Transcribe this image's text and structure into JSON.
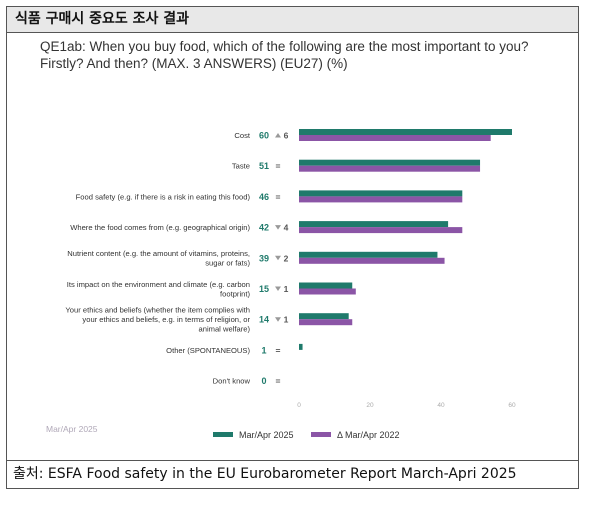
{
  "header": {
    "title": "식품 구매시 중요도 조사 결과"
  },
  "question": {
    "line1": "QE1ab: When you buy food, which of the following are the most important to you?",
    "line2": "Firstly? And then? (MAX. 3 ANSWERS) (EU27) (%)"
  },
  "chart_data": {
    "type": "bar",
    "orientation": "horizontal",
    "categories": [
      [
        "Cost"
      ],
      [
        "Taste"
      ],
      [
        "Food safety (e.g. if there is a risk in eating this food)"
      ],
      [
        "Where the food comes from (e.g. geographical origin)"
      ],
      [
        "Nutrient content (e.g. the amount of vitamins, proteins,",
        "sugar or fats)"
      ],
      [
        "Its impact on the environment and climate (e.g. carbon",
        "footprint)"
      ],
      [
        "Your ethics and beliefs (whether the item complies with",
        "your ethics and beliefs, e.g. in terms of religion, or",
        "animal welfare)"
      ],
      [
        "Other (SPONTANEOUS)"
      ],
      [
        "Don't know"
      ]
    ],
    "series": [
      {
        "name": "Mar/Apr 2025",
        "color": "#1f7a6b",
        "values": [
          60,
          51,
          46,
          42,
          39,
          15,
          14,
          1,
          0
        ]
      },
      {
        "name": "Δ Mar/Apr 2022",
        "color": "#8b55a6",
        "values": [
          54,
          51,
          46,
          46,
          41,
          16,
          15,
          0,
          0
        ]
      }
    ],
    "value_labels": [
      "60",
      "51",
      "46",
      "42",
      "39",
      "15",
      "14",
      "1",
      "0"
    ],
    "changes": [
      {
        "dir": "up",
        "text": "6"
      },
      {
        "dir": "eq",
        "text": "="
      },
      {
        "dir": "eq",
        "text": "="
      },
      {
        "dir": "down",
        "text": "4"
      },
      {
        "dir": "down",
        "text": "2"
      },
      {
        "dir": "down",
        "text": "1"
      },
      {
        "dir": "down",
        "text": "1"
      },
      {
        "dir": "eq",
        "text": "="
      },
      {
        "dir": "eq",
        "text": "="
      }
    ],
    "xlim": [
      0,
      80
    ],
    "xticks": [
      "0",
      "20",
      "40",
      "60"
    ],
    "footnote": "Mar/Apr 2025",
    "legend_position": "bottom"
  },
  "footer": {
    "source": "출처: ESFA Food safety in the EU Eurobarometer Report March-Apri 2025"
  }
}
